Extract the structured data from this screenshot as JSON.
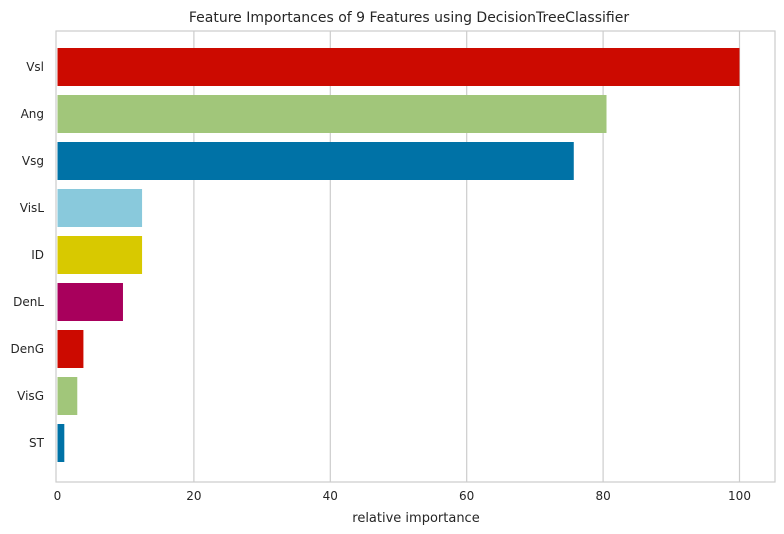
{
  "chart_data": {
    "type": "bar",
    "orientation": "horizontal",
    "title": "Feature Importances of 9 Features using DecisionTreeClassifier",
    "xlabel": "relative importance",
    "ylabel": "",
    "xlim": [
      0,
      105
    ],
    "xticks": [
      0,
      20,
      40,
      60,
      80,
      100
    ],
    "grid": "vertical",
    "categories": [
      "Vsl",
      "Ang",
      "Vsg",
      "VisL",
      "ID",
      "DenL",
      "DenG",
      "VisG",
      "ST"
    ],
    "values": [
      100,
      80.5,
      75.7,
      12.4,
      12.4,
      9.6,
      3.8,
      2.9,
      1.0
    ],
    "colors": [
      "#cc0a00",
      "#a1c67a",
      "#0072a6",
      "#89c9dc",
      "#d8c900",
      "#a8005c",
      "#cc0a00",
      "#a1c67a",
      "#0072a6"
    ]
  }
}
